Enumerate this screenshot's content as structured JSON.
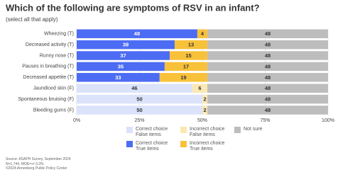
{
  "chart_data": {
    "type": "stacked-barh",
    "title": "Which of the following are symptoms of RSV in an infant?",
    "subtitle": "(select all that apply)",
    "categories": [
      "Wheezing (T)",
      "Decreased activity (T)",
      "Runny nose (T)",
      "Pauses in breathing (T)",
      "Decreased appetite (T)",
      "Jaundiced skin (F)",
      "Spontaneous bruising (F)",
      "Bleeding gums (F)"
    ],
    "series": [
      {
        "name": "Correct choice False items",
        "color": "#dbe3fb",
        "values": [
          null,
          null,
          null,
          null,
          null,
          46,
          50,
          50
        ]
      },
      {
        "name": "Correct choice True items",
        "color": "#4d6cf4",
        "values": [
          48,
          39,
          37,
          35,
          33,
          null,
          null,
          null
        ]
      },
      {
        "name": "Incorrect choice False items",
        "color": "#fbe8b4",
        "values": [
          null,
          null,
          null,
          null,
          null,
          6,
          2,
          2
        ]
      },
      {
        "name": "Incorrect choice True items",
        "color": "#f8c13a",
        "values": [
          4,
          13,
          15,
          17,
          19,
          null,
          null,
          null
        ]
      },
      {
        "name": "Not sure",
        "color": "#bdbdbd",
        "values": [
          48,
          48,
          48,
          48,
          48,
          48,
          48,
          48
        ]
      }
    ],
    "xlim": [
      0,
      100
    ],
    "xticks": [
      {
        "value": 0,
        "label": "0%"
      },
      {
        "value": 25,
        "label": "25%"
      },
      {
        "value": 50,
        "label": "50%"
      },
      {
        "value": 75,
        "label": "75%"
      },
      {
        "value": 100,
        "label": "100%"
      }
    ],
    "grid": true,
    "notes": [
      "Source: ASAPH Survey, September 2024",
      "N=1,744, MOE=+/-3.3%",
      "©2024 Annenberg Public Policy Center"
    ]
  }
}
